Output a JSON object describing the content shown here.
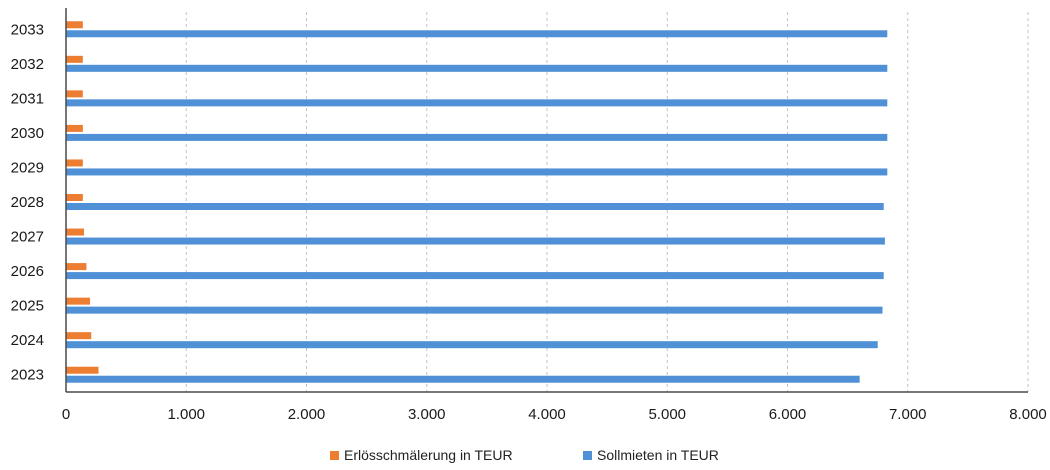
{
  "chart_data": {
    "type": "bar",
    "orientation": "horizontal",
    "categories": [
      "2023",
      "2024",
      "2025",
      "2026",
      "2027",
      "2028",
      "2029",
      "2030",
      "2031",
      "2032",
      "2033"
    ],
    "series": [
      {
        "name": "Erlösschmälerung in TEUR",
        "color": "#ed7d31",
        "values": [
          270,
          210,
          200,
          170,
          150,
          140,
          140,
          140,
          140,
          140,
          140
        ]
      },
      {
        "name": "Sollmieten in TEUR",
        "color": "#4f90d6",
        "values": [
          6600,
          6750,
          6790,
          6800,
          6810,
          6800,
          6830,
          6830,
          6830,
          6830,
          6830
        ]
      }
    ],
    "xlim": [
      0,
      8000
    ],
    "x_ticks": [
      0,
      1000,
      2000,
      3000,
      4000,
      5000,
      6000,
      7000,
      8000
    ],
    "x_tick_labels": [
      "0",
      "1.000",
      "2.000",
      "3.000",
      "4.000",
      "5.000",
      "6.000",
      "7.000",
      "8.000"
    ],
    "grid": true,
    "legend_position": "bottom-center"
  }
}
